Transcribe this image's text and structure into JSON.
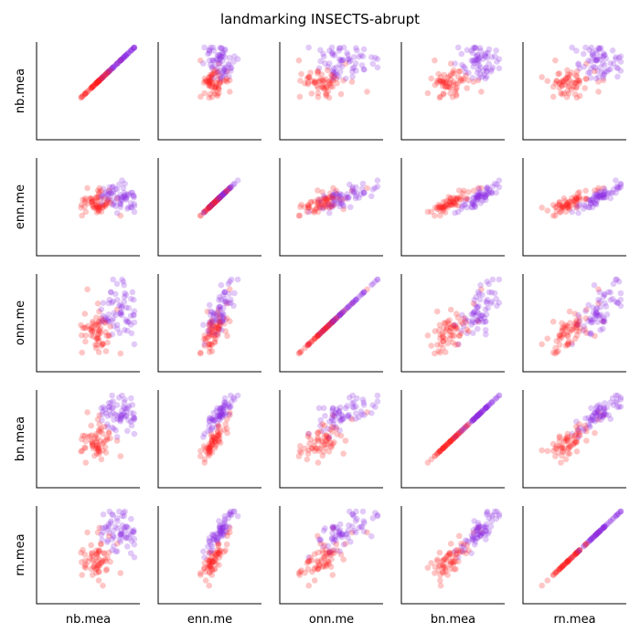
{
  "chart_data": {
    "type": "scatter-matrix",
    "title": "landmarking INSECTS-abrupt",
    "variables": [
      "nb.mea",
      "enn.me",
      "onn.me",
      "bn.mea",
      "rn.mea"
    ],
    "colors": {
      "class_a": "#ff1a1a",
      "class_b": "#8a2be2"
    },
    "point_alpha": 0.25,
    "grid": false,
    "ticks": false,
    "diagonal": "identity-line",
    "seed": 20240501
  }
}
